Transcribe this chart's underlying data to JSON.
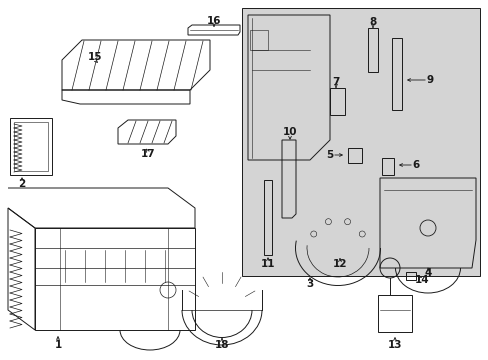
{
  "bg_color": "#ffffff",
  "panel_bg": "#d4d4d4",
  "line_color": "#1a1a1a",
  "lw": 0.7,
  "fig_w": 4.89,
  "fig_h": 3.6,
  "dpi": 100
}
